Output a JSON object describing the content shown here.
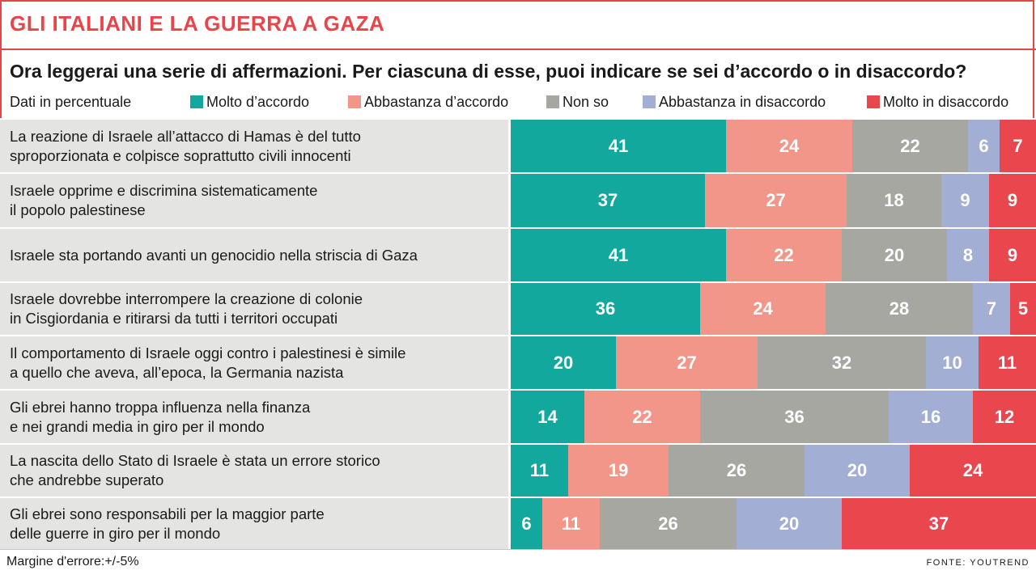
{
  "header": {
    "title": "GLI ITALIANI E LA GUERRA A GAZA",
    "question": "Ora leggerai una serie di affermazioni. Per ciascuna di esse, puoi indicare se sei d’accordo o in disaccordo?"
  },
  "legend": {
    "note": "Dati in percentuale"
  },
  "footer": {
    "margin": "Margine d'errore:+/-5%",
    "source": "FONTE: YOUTREND"
  },
  "chart_data": {
    "type": "bar",
    "stacked": true,
    "orientation": "horizontal",
    "categories": [
      "La reazione di Israele all’attacco di Hamas è del tutto\nsproporzionata e colpisce soprattutto civili innocenti",
      "Israele opprime e discrimina sistematicamente\nil popolo palestinese",
      "Israele sta portando avanti un genocidio nella striscia di Gaza",
      "Israele dovrebbe interrompere la creazione di colonie\nin Cisgiordania e ritirarsi da tutti i territori occupati",
      "Il comportamento di Israele oggi contro i palestinesi è simile\na quello che aveva, all’epoca, la Germania nazista",
      "Gli ebrei hanno troppa influenza nella finanza\ne nei grandi media in giro per il mondo",
      "La nascita dello Stato di Israele è stata un errore storico\nche andrebbe superato",
      "Gli ebrei sono responsabili per la maggior parte\ndelle guerre in giro per il mondo"
    ],
    "series": [
      {
        "name": "Molto d’accordo",
        "color": "#13a89e",
        "values": [
          41,
          37,
          41,
          36,
          20,
          14,
          11,
          6
        ]
      },
      {
        "name": "Abbastanza d’accordo",
        "color": "#f3968a",
        "values": [
          24,
          27,
          22,
          24,
          27,
          22,
          19,
          11
        ]
      },
      {
        "name": "Non so",
        "color": "#a7a7a2",
        "values": [
          22,
          18,
          20,
          28,
          32,
          36,
          26,
          26
        ]
      },
      {
        "name": "Abbastanza in disaccordo",
        "color": "#a2aed3",
        "values": [
          6,
          9,
          8,
          7,
          10,
          16,
          20,
          20
        ]
      },
      {
        "name": "Molto in disaccordo",
        "color": "#e9474d",
        "values": [
          7,
          9,
          9,
          5,
          11,
          12,
          24,
          37
        ]
      }
    ]
  }
}
